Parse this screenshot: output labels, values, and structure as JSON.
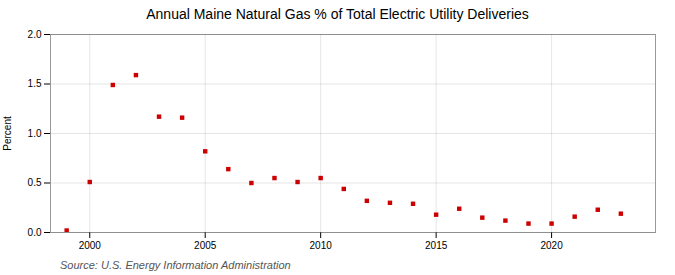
{
  "chart_data": {
    "type": "scatter",
    "title": "Annual Maine Natural Gas % of Total Electric Utility Deliveries",
    "ylabel": "Percent",
    "source": "Source: U.S. Energy Information Administration",
    "x": [
      1999,
      2000,
      2001,
      2002,
      2003,
      2004,
      2005,
      2006,
      2007,
      2008,
      2009,
      2010,
      2011,
      2012,
      2013,
      2014,
      2015,
      2016,
      2017,
      2018,
      2019,
      2020,
      2021,
      2022,
      2023
    ],
    "values": [
      0.02,
      0.51,
      1.49,
      1.59,
      1.17,
      1.16,
      0.82,
      0.64,
      0.5,
      0.55,
      0.51,
      0.55,
      0.44,
      0.32,
      0.3,
      0.29,
      0.18,
      0.24,
      0.15,
      0.12,
      0.09,
      0.09,
      0.16,
      0.23,
      0.19
    ],
    "color": "#cc0000",
    "marker": "square",
    "xlim": [
      1998.3,
      2024.5
    ],
    "xticks": [
      2000,
      2005,
      2010,
      2015,
      2020
    ],
    "ylim": [
      0.0,
      2.0
    ],
    "yticks": [
      {
        "value": 0,
        "label": "0.0"
      },
      0.5,
      {
        "value": 1,
        "label": "1.0"
      },
      1.5,
      {
        "value": 2,
        "label": "2.0"
      }
    ],
    "grid": true
  }
}
